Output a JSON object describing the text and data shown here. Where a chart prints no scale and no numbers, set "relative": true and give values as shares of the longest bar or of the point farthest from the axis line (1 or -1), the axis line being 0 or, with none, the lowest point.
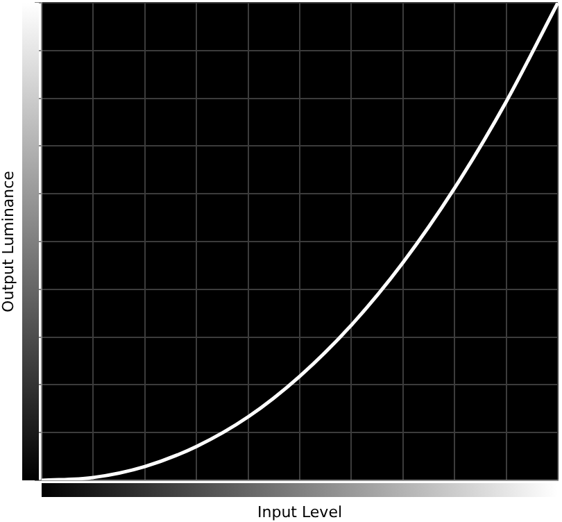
{
  "chart_data": {
    "type": "line",
    "xlabel": "Input Level",
    "ylabel": "Output Luminance",
    "relative": true,
    "grid": true,
    "legend": false,
    "marker": "none",
    "line_style": "solid",
    "categories": [
      null,
      null,
      null,
      null,
      null,
      null,
      null,
      null,
      null,
      null,
      null
    ],
    "series": [
      {
        "color": "#ffffff",
        "values": [
          0,
          0.006,
          0.029,
          0.071,
          0.133,
          0.218,
          0.325,
          0.456,
          0.612,
          0.793,
          1
        ]
      }
    ]
  }
}
